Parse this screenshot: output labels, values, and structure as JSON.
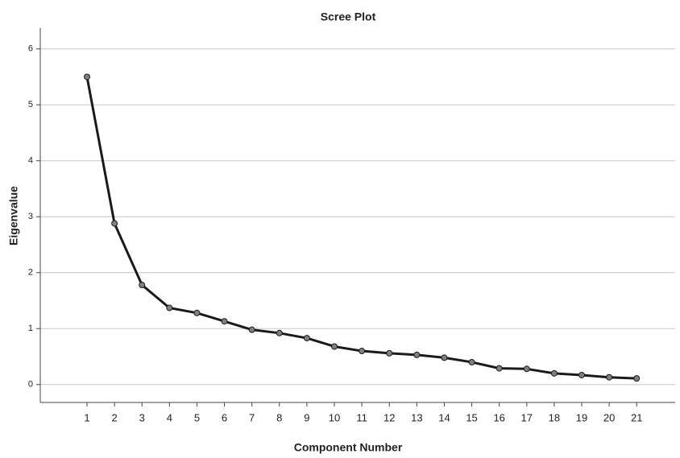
{
  "chart_data": {
    "type": "line",
    "title": "Scree Plot",
    "x_label": "Component Number",
    "y_label": "Eigenvalue",
    "x": [
      1,
      2,
      3,
      4,
      5,
      6,
      7,
      8,
      9,
      10,
      11,
      12,
      13,
      14,
      15,
      16,
      17,
      18,
      19,
      20,
      21
    ],
    "values": [
      5.5,
      2.88,
      1.78,
      1.37,
      1.28,
      1.13,
      0.98,
      0.92,
      0.83,
      0.68,
      0.6,
      0.56,
      0.53,
      0.48,
      0.4,
      0.29,
      0.28,
      0.2,
      0.17,
      0.13,
      0.11
    ],
    "color": "#1a1a1a",
    "marker_color": "#808080",
    "xlim": [
      -0.7,
      22.4
    ],
    "xticks": [
      1,
      2,
      3,
      4,
      5,
      6,
      7,
      8,
      9,
      10,
      11,
      12,
      13,
      14,
      15,
      16,
      17,
      18,
      19,
      20,
      21
    ],
    "ylim": [
      -0.32,
      6.37
    ],
    "yticks": [
      0,
      1,
      2,
      3,
      4,
      5,
      6
    ],
    "grid": true
  }
}
